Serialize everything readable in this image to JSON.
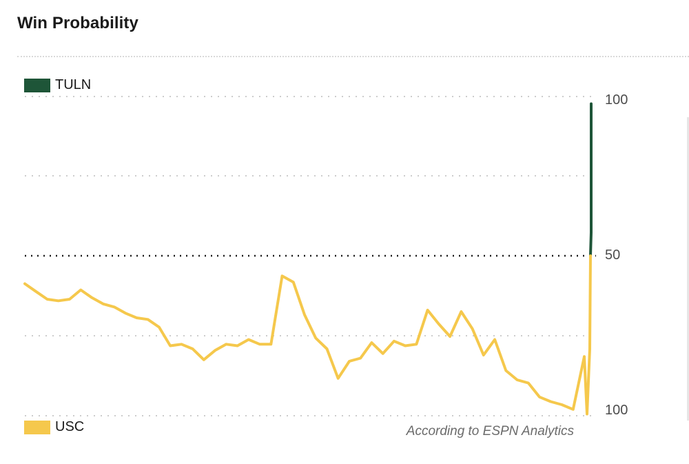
{
  "header": {
    "title": "Win Probability"
  },
  "colors": {
    "home": "#1e5538",
    "away": "#f5c84c",
    "grid": "#cccccc",
    "midline": "#1a1a1a",
    "text": "#1a1a1a"
  },
  "footer": {
    "note": "According to ESPN Analytics"
  },
  "chart_data": {
    "type": "line",
    "title": "Win Probability",
    "series": [
      {
        "name": "TULN",
        "color": "#1e5538",
        "side": "top"
      },
      {
        "name": "USC",
        "color": "#f5c84c",
        "side": "bottom"
      }
    ],
    "y_tick_labels": [
      "100",
      "50",
      "100"
    ],
    "ylim": [
      -100,
      100
    ],
    "grid": true,
    "legend": {
      "top": "TULN",
      "bottom": "USC"
    },
    "x": [
      0,
      2,
      4,
      6,
      8,
      10,
      12,
      14,
      16,
      18,
      20,
      22,
      24,
      26,
      28,
      30,
      32,
      34,
      36,
      38,
      40,
      42,
      44,
      46,
      48,
      50,
      52,
      54,
      56,
      58,
      60,
      62,
      64,
      66,
      68,
      70,
      72,
      74,
      76,
      78,
      80,
      82,
      84,
      86,
      88,
      90,
      92,
      94,
      96,
      98,
      100
    ],
    "values": [
      -18,
      -23,
      -28,
      -29,
      -28,
      -22,
      -27,
      -31,
      -33,
      -37,
      -40,
      -41,
      -46,
      -58,
      -57,
      -60,
      -67,
      -61,
      -57,
      -58,
      -54,
      -57,
      -57,
      -13,
      -17,
      -38,
      -53,
      -60,
      -79,
      -68,
      -66,
      -56,
      -63,
      -55,
      -58,
      -57,
      -35,
      -44,
      -52,
      -36,
      -47,
      -64,
      -54,
      -74,
      -80,
      -82,
      -91,
      -94,
      -96,
      -99,
      -65
    ],
    "final_spike": {
      "tuln_peak": 98,
      "usc_low": -102
    }
  }
}
